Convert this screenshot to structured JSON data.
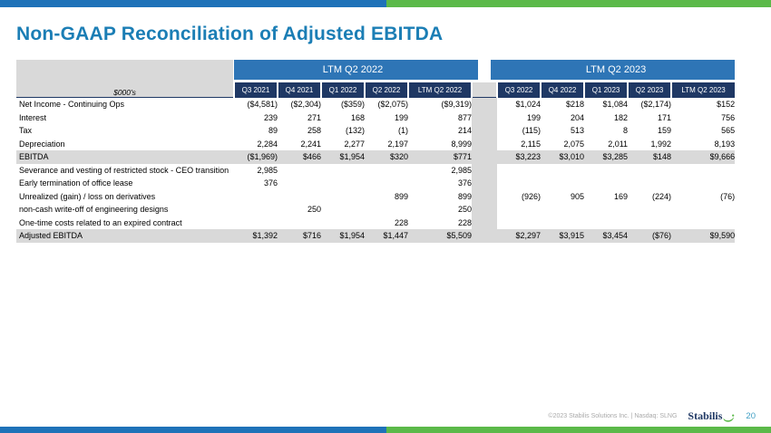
{
  "title": "Non-GAAP Reconciliation of Adjusted EBITDA",
  "colors": {
    "title": "#1B7EB5",
    "bar_blue": "#1E72B8",
    "bar_green": "#5BB949",
    "group_header_bg": "#2E75B6",
    "subheader_bg": "#1F3864",
    "highlight_gray": "#D9D9D9"
  },
  "table": {
    "units_label": "$000's",
    "groups": [
      {
        "label": "LTM Q2 2022",
        "columns": [
          "Q3 2021",
          "Q4 2021",
          "Q1 2022",
          "Q2 2022",
          "LTM Q2 2022"
        ]
      },
      {
        "label": "LTM Q2 2023",
        "columns": [
          "Q3 2022",
          "Q4 2022",
          "Q1 2023",
          "Q2 2023",
          "LTM Q2 2023"
        ]
      }
    ],
    "rows": [
      {
        "label": "Net Income - Continuing Ops",
        "highlight": false,
        "ltm2022": [
          "($4,581)",
          "($2,304)",
          "($359)",
          "($2,075)",
          "($9,319)"
        ],
        "ltm2023": [
          "$1,024",
          "$218",
          "$1,084",
          "($2,174)",
          "$152"
        ]
      },
      {
        "label": "Interest",
        "highlight": false,
        "ltm2022": [
          "239",
          "271",
          "168",
          "199",
          "877"
        ],
        "ltm2023": [
          "199",
          "204",
          "182",
          "171",
          "756"
        ]
      },
      {
        "label": "Tax",
        "highlight": false,
        "ltm2022": [
          "89",
          "258",
          "(132)",
          "(1)",
          "214"
        ],
        "ltm2023": [
          "(115)",
          "513",
          "8",
          "159",
          "565"
        ]
      },
      {
        "label": "Depreciation",
        "highlight": false,
        "ltm2022": [
          "2,284",
          "2,241",
          "2,277",
          "2,197",
          "8,999"
        ],
        "ltm2023": [
          "2,115",
          "2,075",
          "2,011",
          "1,992",
          "8,193"
        ]
      },
      {
        "label": "EBITDA",
        "highlight": true,
        "ltm2022": [
          "($1,969)",
          "$466",
          "$1,954",
          "$320",
          "$771"
        ],
        "ltm2023": [
          "$3,223",
          "$3,010",
          "$3,285",
          "$148",
          "$9,666"
        ]
      },
      {
        "label": "Severance and vesting of restricted stock - CEO transition",
        "highlight": false,
        "ltm2022": [
          "2,985",
          "",
          "",
          "",
          "2,985"
        ],
        "ltm2023": [
          "",
          "",
          "",
          "",
          ""
        ]
      },
      {
        "label": "Early termination of office lease",
        "highlight": false,
        "ltm2022": [
          "376",
          "",
          "",
          "",
          "376"
        ],
        "ltm2023": [
          "",
          "",
          "",
          "",
          ""
        ]
      },
      {
        "label": "Unrealized (gain) / loss on derivatives",
        "highlight": false,
        "ltm2022": [
          "",
          "",
          "",
          "899",
          "899"
        ],
        "ltm2023": [
          "(926)",
          "905",
          "169",
          "(224)",
          "(76)"
        ]
      },
      {
        "label": "non-cash write-off of engineering designs",
        "highlight": false,
        "ltm2022": [
          "",
          "250",
          "",
          "",
          "250"
        ],
        "ltm2023": [
          "",
          "",
          "",
          "",
          ""
        ]
      },
      {
        "label": "One-time costs related to an expired contract",
        "highlight": false,
        "ltm2022": [
          "",
          "",
          "",
          "228",
          "228"
        ],
        "ltm2023": [
          "",
          "",
          "",
          "",
          ""
        ]
      },
      {
        "label": "Adjusted EBITDA",
        "highlight": true,
        "ltm2022": [
          "$1,392",
          "$716",
          "$1,954",
          "$1,447",
          "$5,509"
        ],
        "ltm2023": [
          "$2,297",
          "$3,915",
          "$3,454",
          "($76)",
          "$9,590"
        ]
      }
    ]
  },
  "footer": {
    "copyright": "©2023 Stabilis Solutions Inc. | Nasdaq: SLNG",
    "logo_text": "Stabilis",
    "page_number": "20"
  }
}
